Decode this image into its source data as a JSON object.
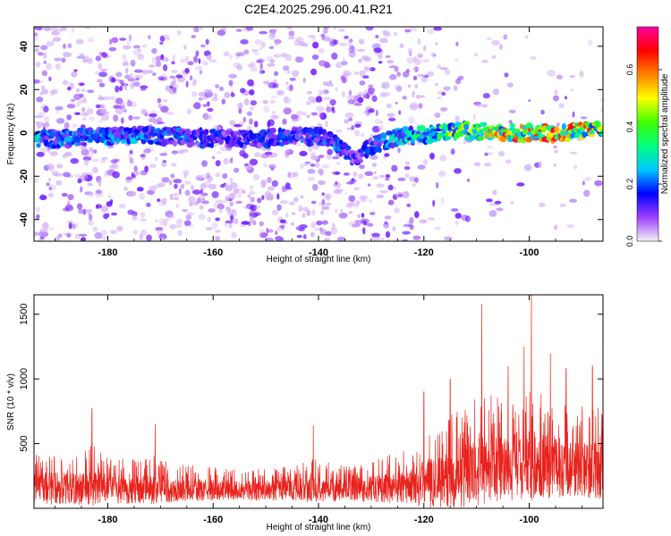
{
  "title": "C2E4.2025.296.00.41.R21",
  "colors": {
    "snr_line": "#e8221c",
    "spectrogram_purple": "#8a2be2",
    "axis": "#000000"
  },
  "chart_data": [
    {
      "type": "heatmap",
      "name": "spectrogram",
      "xlabel": "Height of straight line (km)",
      "ylabel": "Frequency (Hz)",
      "xlim": [
        -194,
        -86
      ],
      "ylim": [
        -50,
        49
      ],
      "xticks": [
        -180,
        -160,
        -140,
        -120,
        -100
      ],
      "xtick_labels": [
        "-180",
        "-160",
        "-140",
        "-120",
        "-100"
      ],
      "yticks": [
        -40,
        -20,
        0,
        20,
        40
      ],
      "ytick_labels": [
        "-40",
        "-20",
        "0",
        "20",
        "40"
      ],
      "signal_track": {
        "description": "narrow horizontal band centered near 0 Hz; strongest from -118 to -87 km",
        "x": [
          -193,
          -185,
          -175,
          -165,
          -155,
          -145,
          -138,
          -133,
          -130,
          -125,
          -120,
          -115,
          -110,
          -105,
          -100,
          -95,
          -90,
          -87
        ],
        "center_hz": [
          -3,
          -2,
          -1,
          -2,
          -3,
          -2,
          -2,
          -12,
          -6,
          -2,
          -1,
          1,
          1,
          0,
          0,
          0,
          1,
          2
        ],
        "amplitude": [
          0.25,
          0.2,
          0.22,
          0.18,
          0.15,
          0.18,
          0.22,
          0.15,
          0.18,
          0.25,
          0.3,
          0.4,
          0.45,
          0.55,
          0.6,
          0.6,
          0.55,
          0.5
        ]
      }
    },
    {
      "type": "colorbar",
      "name": "colorbar",
      "label": "Normalized spectral amplitude",
      "range": [
        0,
        0.75
      ],
      "ticks": [
        0.0,
        0.2,
        0.4,
        0.6
      ],
      "tick_labels": [
        "0.0",
        "0.2",
        "0.4",
        "0.6"
      ],
      "colors": [
        "#f2f2f2",
        "#a040ff",
        "#0000ff",
        "#00c8ff",
        "#00ff80",
        "#40ff00",
        "#ffff00",
        "#ff8000",
        "#ff0000",
        "#ff00a0"
      ]
    },
    {
      "type": "line",
      "name": "snr",
      "xlabel": "Height of straight line (km)",
      "ylabel": "SNR (10 * v/v)",
      "xlim": [
        -194,
        -86
      ],
      "ylim": [
        0,
        1650
      ],
      "xticks": [
        -180,
        -160,
        -140,
        -120,
        -100
      ],
      "xtick_labels": [
        "-180",
        "-160",
        "-140",
        "-120",
        "-100"
      ],
      "yticks": [
        500,
        1000,
        1500
      ],
      "ytick_labels": [
        "500",
        "1000",
        "1500"
      ],
      "envelope": {
        "x": [
          -194,
          -190,
          -186,
          -183,
          -180,
          -175,
          -171,
          -168,
          -160,
          -150,
          -145,
          -141,
          -138,
          -135,
          -130,
          -126,
          -122,
          -120,
          -116,
          -112,
          -110,
          -108,
          -104,
          -100,
          -98,
          -95,
          -92,
          -90,
          -87
        ],
        "baseline": [
          150,
          160,
          150,
          160,
          150,
          140,
          150,
          140,
          140,
          140,
          140,
          150,
          150,
          140,
          150,
          160,
          170,
          190,
          220,
          250,
          280,
          300,
          320,
          330,
          330,
          320,
          310,
          300,
          290
        ],
        "typical_peak": [
          420,
          450,
          420,
          500,
          400,
          380,
          420,
          350,
          320,
          310,
          330,
          380,
          360,
          330,
          380,
          420,
          480,
          600,
          700,
          800,
          850,
          900,
          900,
          950,
          900,
          850,
          800,
          800,
          780
        ]
      },
      "spikes": [
        {
          "x": -183,
          "y": 770
        },
        {
          "x": -171,
          "y": 650
        },
        {
          "x": -141,
          "y": 640
        },
        {
          "x": -120,
          "y": 900
        },
        {
          "x": -115,
          "y": 1000
        },
        {
          "x": -109,
          "y": 1580
        },
        {
          "x": -104,
          "y": 1100
        },
        {
          "x": -101,
          "y": 1250
        },
        {
          "x": -99.6,
          "y": 1650
        },
        {
          "x": -96,
          "y": 1200
        },
        {
          "x": -93,
          "y": 1080
        },
        {
          "x": -88,
          "y": 1100
        }
      ]
    }
  ]
}
